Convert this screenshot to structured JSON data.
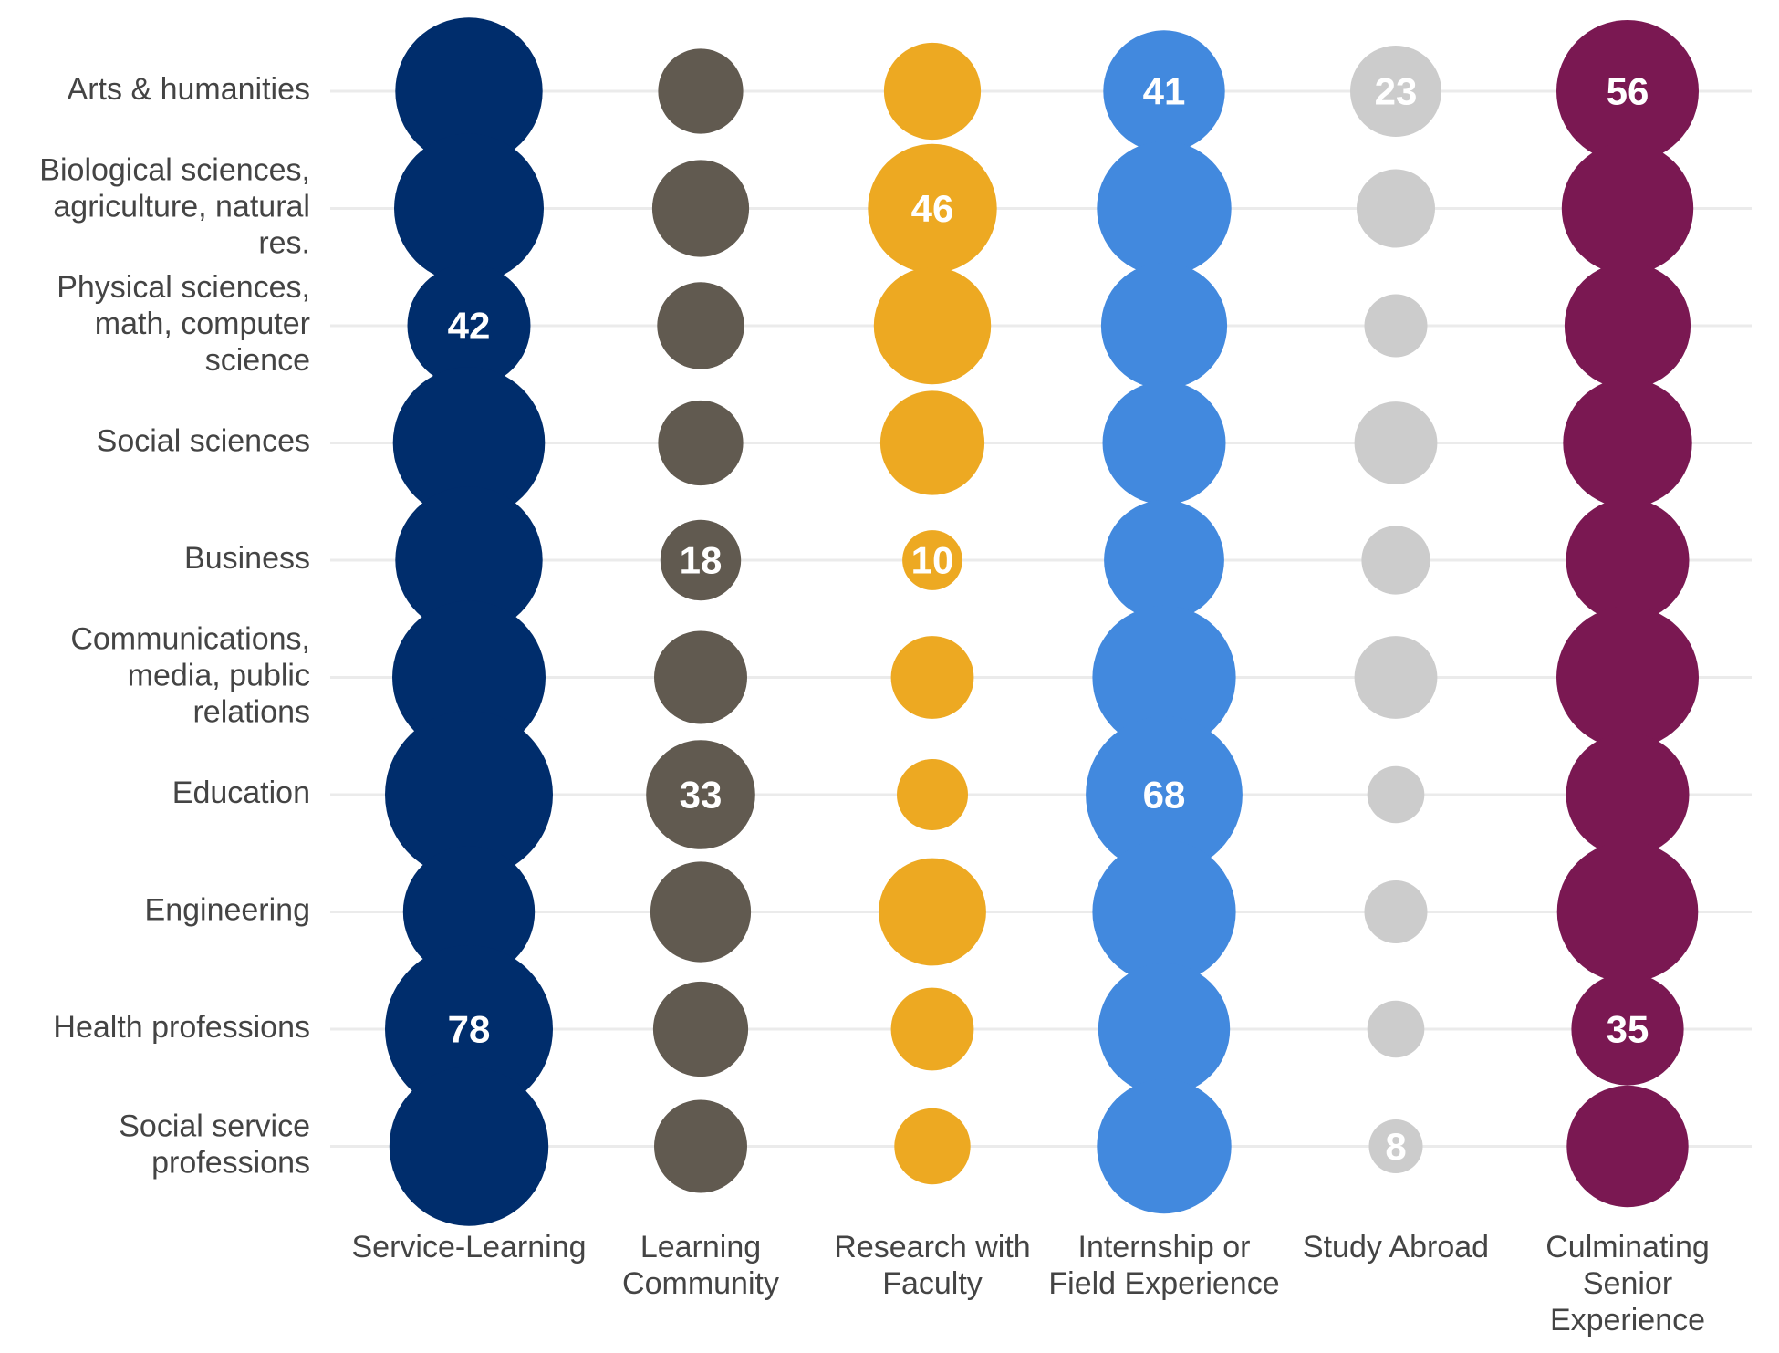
{
  "chart_data": {
    "type": "bubble-grid",
    "title": "",
    "xlabel": "",
    "ylabel": "",
    "grid": true,
    "legend": "none",
    "rows": [
      "Arts & humanities",
      "Biological sciences, agriculture, natural res.",
      "Physical sciences, math, computer science",
      "Social sciences",
      "Business",
      "Communications, media, public relations",
      "Education",
      "Engineering",
      "Health professions",
      "Social service professions"
    ],
    "row_label_lines": [
      [
        "Arts & humanities"
      ],
      [
        "Biological sciences,",
        "agriculture, natural",
        "res."
      ],
      [
        "Physical sciences,",
        "math, computer",
        "science"
      ],
      [
        "Social sciences"
      ],
      [
        "Business"
      ],
      [
        "Communications,",
        "media, public",
        "relations"
      ],
      [
        "Education"
      ],
      [
        "Engineering"
      ],
      [
        "Health professions"
      ],
      [
        "Social service",
        "professions"
      ]
    ],
    "series": [
      {
        "name": "Service-Learning",
        "label_lines": [
          "Service-Learning"
        ],
        "color": "#002D6C",
        "values": [
          60,
          62,
          42,
          64,
          60,
          65,
          78,
          48,
          78,
          70
        ],
        "labels": [
          "",
          "",
          "42",
          "",
          "",
          "",
          "",
          "",
          "78",
          ""
        ]
      },
      {
        "name": "Learning Community",
        "label_lines": [
          "Learning",
          "Community"
        ],
        "color": "#615A50",
        "values": [
          20,
          26,
          21,
          20,
          18,
          24,
          33,
          28,
          25,
          24
        ],
        "labels": [
          "",
          "",
          "",
          "",
          "18",
          "",
          "33",
          "",
          "",
          ""
        ]
      },
      {
        "name": "Research with Faculty",
        "label_lines": [
          "Research with",
          "Faculty"
        ],
        "color": "#EDA922",
        "values": [
          26,
          46,
          38,
          30,
          10,
          19,
          14,
          32,
          19,
          16
        ],
        "labels": [
          "",
          "46",
          "",
          "",
          "10",
          "",
          "",
          "",
          "",
          ""
        ]
      },
      {
        "name": "Internship or Field Experience",
        "label_lines": [
          "Internship or",
          "Field Experience"
        ],
        "color": "#4289DE",
        "values": [
          41,
          50,
          44,
          42,
          40,
          57,
          68,
          57,
          48,
          50
        ],
        "labels": [
          "41",
          "",
          "",
          "",
          "",
          "",
          "68",
          "",
          "",
          ""
        ]
      },
      {
        "name": "Study Abroad",
        "label_lines": [
          "Study Abroad"
        ],
        "color": "#CCCCCC",
        "values": [
          23,
          17,
          11,
          19,
          13,
          19,
          9,
          11,
          9,
          8
        ],
        "labels": [
          "23",
          "",
          "",
          "",
          "",
          "",
          "",
          "",
          "",
          "8"
        ]
      },
      {
        "name": "Culminating Senior Experience",
        "label_lines": [
          "Culminating",
          "Senior",
          "Experience"
        ],
        "color": "#7A1852",
        "values": [
          56,
          48,
          44,
          46,
          42,
          56,
          42,
          55,
          35,
          41
        ],
        "labels": [
          "56",
          "",
          "",
          "",
          "",
          "",
          "",
          "",
          "35",
          ""
        ]
      }
    ]
  }
}
